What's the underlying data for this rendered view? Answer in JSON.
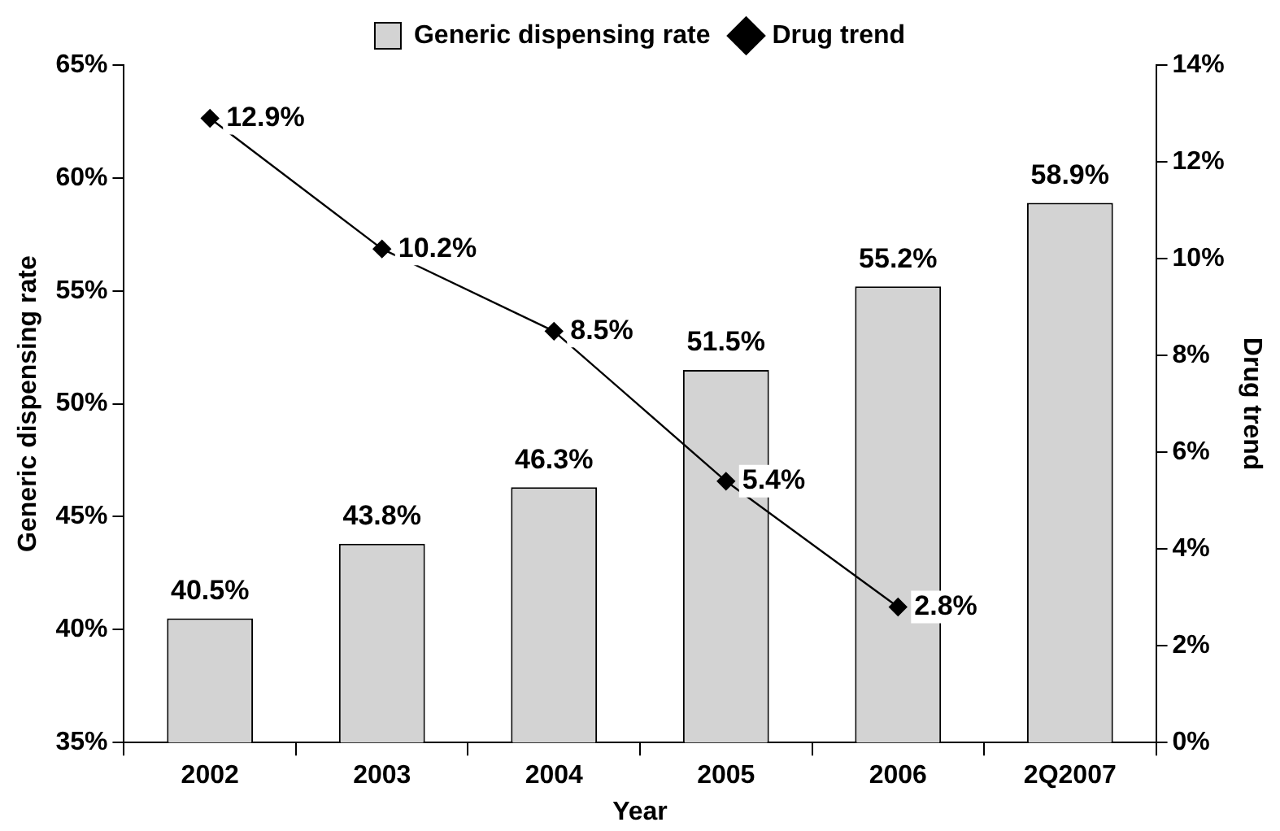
{
  "chart_data": {
    "type": "bar",
    "xlabel": "Year",
    "ylabel": "Generic dispensing rate",
    "y2label": "Drug trend",
    "categories": [
      "2002",
      "2003",
      "2004",
      "2005",
      "2006",
      "2Q2007"
    ],
    "series": [
      {
        "name": "Generic dispensing rate",
        "color": "#d3d3d3",
        "values": [
          40.5,
          43.8,
          46.3,
          51.5,
          55.2,
          58.9
        ],
        "value_labels": [
          "40.5%",
          "43.8%",
          "46.3%",
          "51.5%",
          "55.2%",
          "58.9%"
        ]
      },
      {
        "name": "Drug trend",
        "type": "line",
        "axis": "y2",
        "color": "#000000",
        "values": [
          12.9,
          10.2,
          8.5,
          5.4,
          2.8,
          null
        ],
        "value_labels": [
          "12.9%",
          "10.2%",
          "8.5%",
          "5.4%",
          "2.8%",
          null
        ]
      }
    ],
    "ylim": [
      35,
      65
    ],
    "yticks": [
      {
        "value": 35,
        "label": "35%"
      },
      {
        "value": 40,
        "label": "40%"
      },
      {
        "value": 45,
        "label": "45%"
      },
      {
        "value": 50,
        "label": "50%"
      },
      {
        "value": 55,
        "label": "55%"
      },
      {
        "value": 60,
        "label": "60%"
      },
      {
        "value": 65,
        "label": "65%"
      }
    ],
    "y2lim": [
      0,
      14
    ],
    "y2ticks": [
      {
        "value": 0,
        "label": "0%"
      },
      {
        "value": 2,
        "label": "2%"
      },
      {
        "value": 4,
        "label": "4%"
      },
      {
        "value": 6,
        "label": "6%"
      },
      {
        "value": 8,
        "label": "8%"
      },
      {
        "value": 10,
        "label": "10%"
      },
      {
        "value": 12,
        "label": "12%"
      },
      {
        "value": 14,
        "label": "14%"
      }
    ],
    "grid": false,
    "legend": "top",
    "marker": "diamond",
    "line_style": "solid"
  }
}
